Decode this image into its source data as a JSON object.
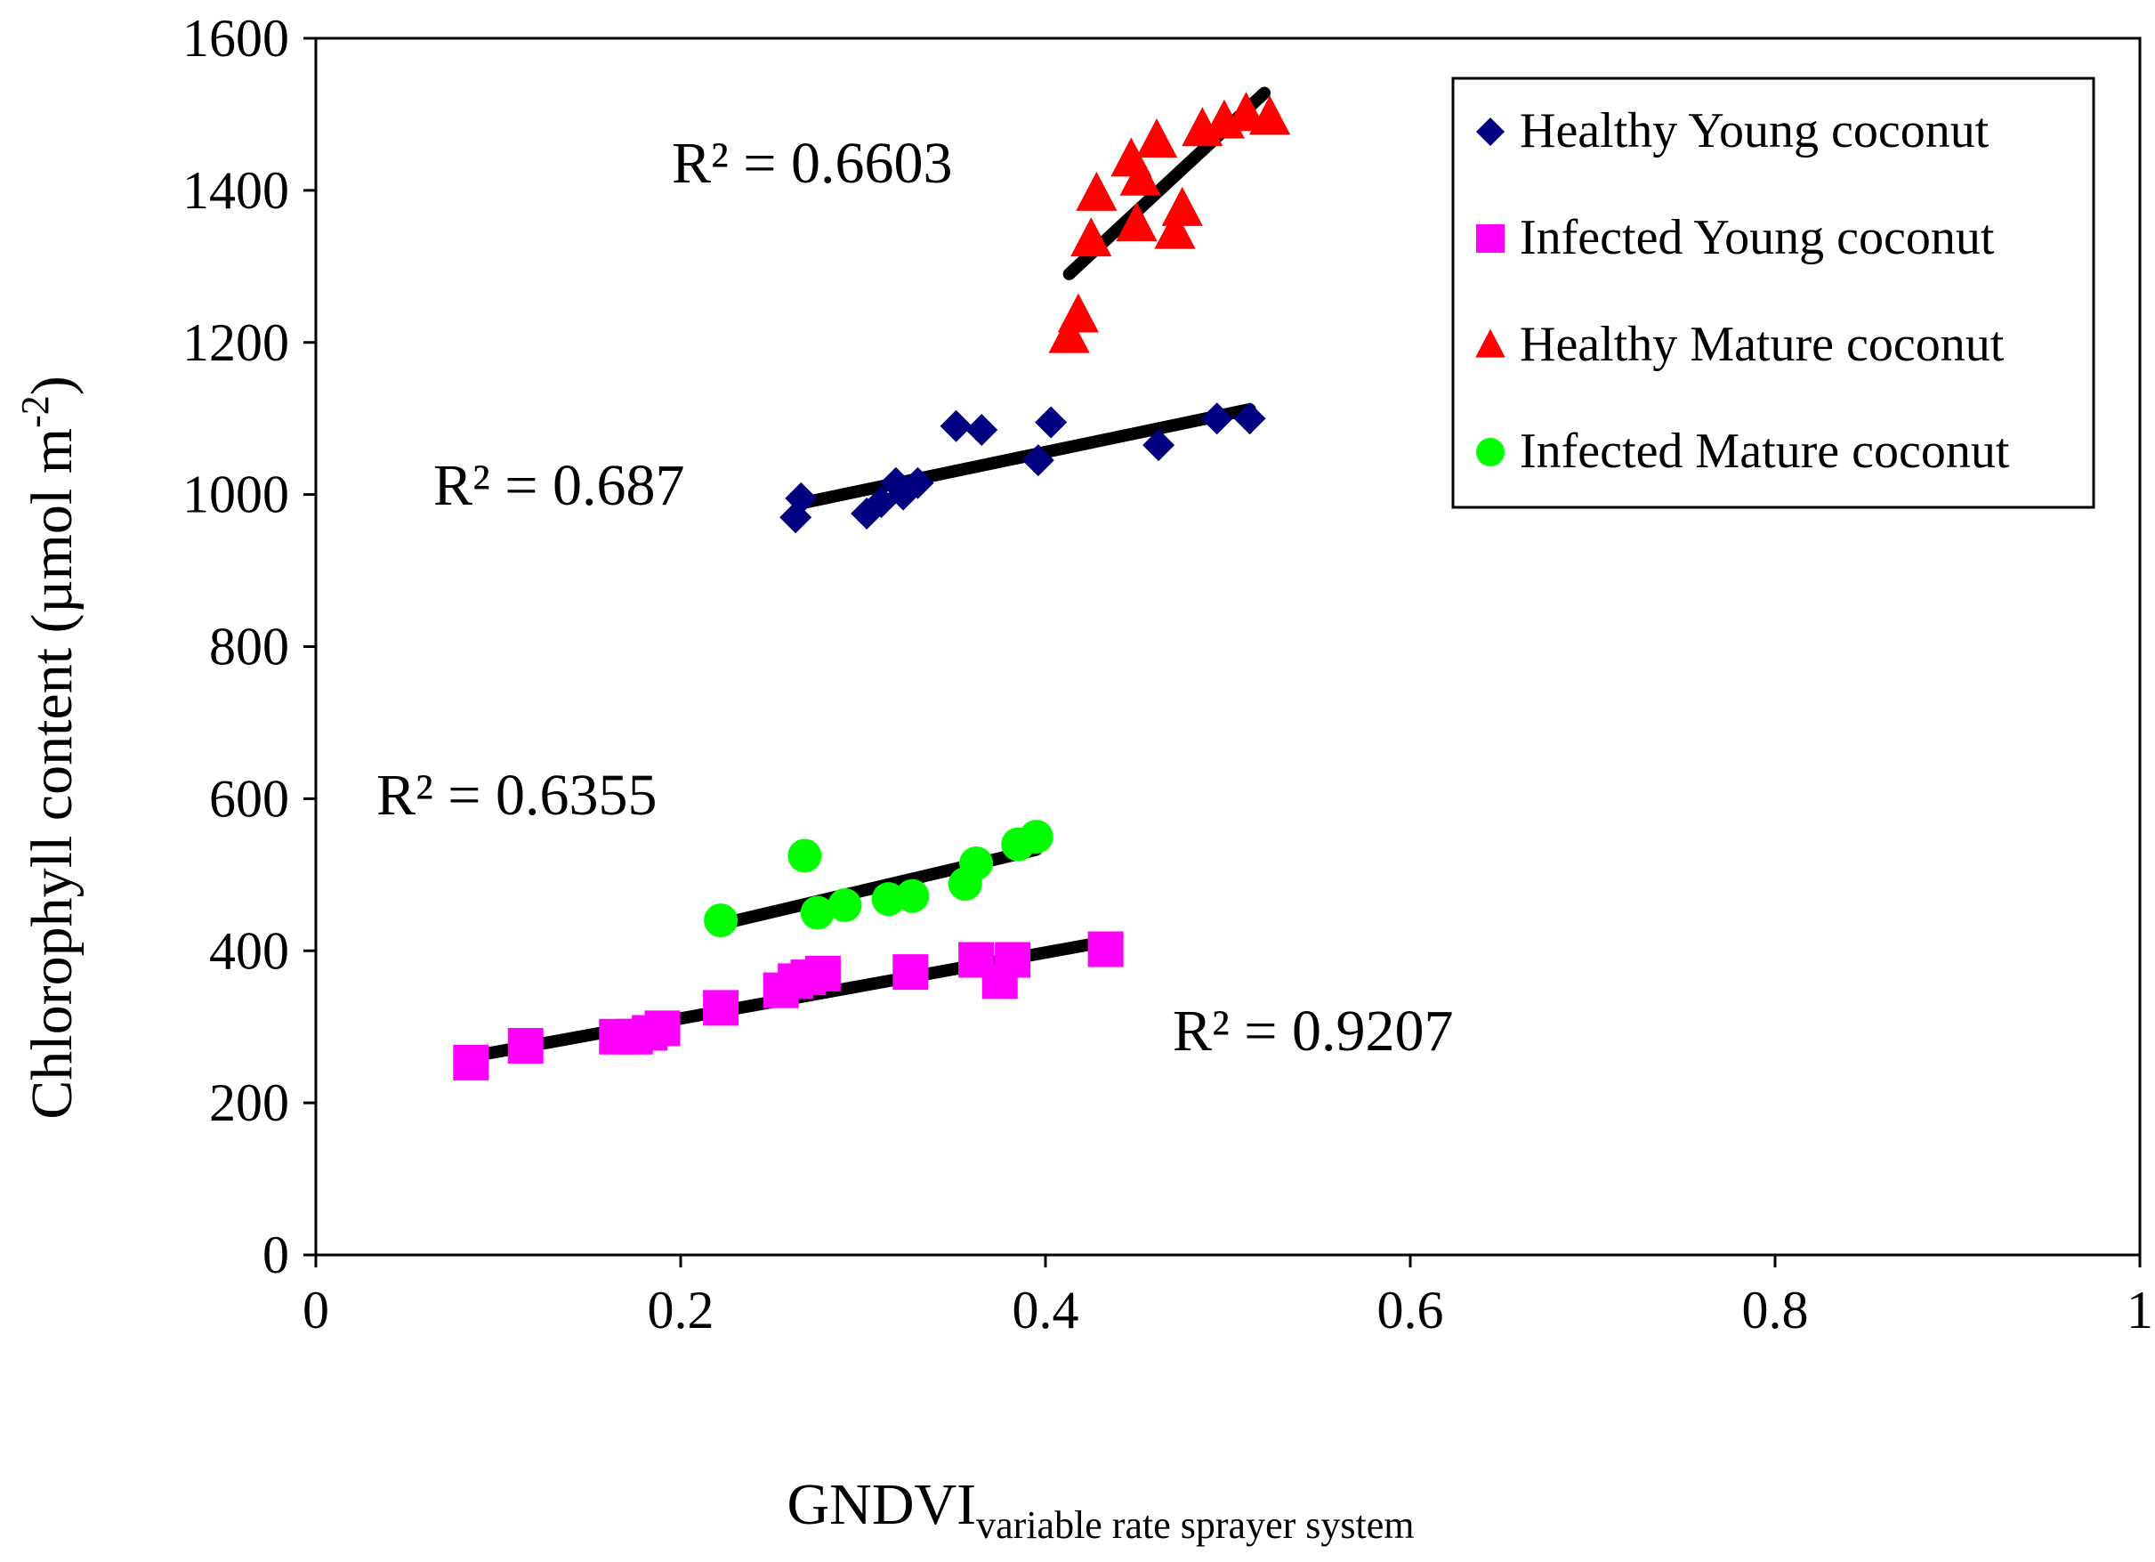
{
  "chart_data": {
    "type": "scatter",
    "title": "",
    "xlabel": "GNDVI",
    "xlabel_subscript": "variable rate sprayer system",
    "ylabel": "Chlorophyll content (µmol m",
    "ylabel_superscript": "-2",
    "ylabel_close": ")",
    "xlim": [
      0,
      1
    ],
    "ylim": [
      0,
      1600
    ],
    "xticks": [
      0,
      0.2,
      0.4,
      0.6,
      0.8,
      1
    ],
    "xtick_labels": [
      "0",
      "0.2",
      "0.4",
      "0.6",
      "0.8",
      "1"
    ],
    "yticks": [
      0,
      200,
      400,
      600,
      800,
      1000,
      1200,
      1400,
      1600
    ],
    "ytick_labels": [
      "0",
      "200",
      "400",
      "600",
      "800",
      "1000",
      "1200",
      "1400",
      "1600"
    ],
    "legend_position": "top-right",
    "series": [
      {
        "name": "Healthy Young coconut",
        "marker": "diamond",
        "color": "#000080",
        "points": [
          [
            0.263,
            970
          ],
          [
            0.266,
            995
          ],
          [
            0.302,
            975
          ],
          [
            0.31,
            990
          ],
          [
            0.318,
            1015
          ],
          [
            0.322,
            1000
          ],
          [
            0.33,
            1015
          ],
          [
            0.351,
            1090
          ],
          [
            0.365,
            1085
          ],
          [
            0.396,
            1045
          ],
          [
            0.403,
            1095
          ],
          [
            0.462,
            1065
          ],
          [
            0.494,
            1100
          ],
          [
            0.512,
            1100
          ]
        ],
        "trendline": {
          "x": [
            0.265,
            0.512
          ],
          "y": [
            988,
            1112
          ]
        },
        "r2_label": "R² = 0.687"
      },
      {
        "name": "Infected Young coconut",
        "marker": "square",
        "color": "#FF00FF",
        "points": [
          [
            0.085,
            253
          ],
          [
            0.115,
            275
          ],
          [
            0.165,
            287
          ],
          [
            0.175,
            287
          ],
          [
            0.183,
            292
          ],
          [
            0.19,
            298
          ],
          [
            0.222,
            325
          ],
          [
            0.255,
            348
          ],
          [
            0.263,
            360
          ],
          [
            0.27,
            365
          ],
          [
            0.278,
            370
          ],
          [
            0.326,
            372
          ],
          [
            0.362,
            388
          ],
          [
            0.375,
            360
          ],
          [
            0.382,
            388
          ],
          [
            0.433,
            402
          ]
        ],
        "trendline": {
          "x": [
            0.085,
            0.433
          ],
          "y": [
            261,
            412
          ]
        },
        "r2_label": "R² = 0.9207"
      },
      {
        "name": "Healthy Mature coconut",
        "marker": "triangle",
        "color": "#FF0000",
        "points": [
          [
            0.413,
            1208
          ],
          [
            0.418,
            1235
          ],
          [
            0.425,
            1335
          ],
          [
            0.428,
            1395
          ],
          [
            0.447,
            1440
          ],
          [
            0.45,
            1355
          ],
          [
            0.452,
            1415
          ],
          [
            0.461,
            1465
          ],
          [
            0.471,
            1345
          ],
          [
            0.475,
            1375
          ],
          [
            0.486,
            1480
          ],
          [
            0.498,
            1490
          ],
          [
            0.51,
            1500
          ],
          [
            0.523,
            1495
          ]
        ],
        "trendline": {
          "x": [
            0.413,
            0.52
          ],
          "y": [
            1290,
            1528
          ]
        },
        "r2_label": "R² = 0.6603"
      },
      {
        "name": "Infected Mature coconut",
        "marker": "circle",
        "color": "#00FF00",
        "points": [
          [
            0.222,
            440
          ],
          [
            0.268,
            525
          ],
          [
            0.275,
            450
          ],
          [
            0.29,
            460
          ],
          [
            0.314,
            468
          ],
          [
            0.327,
            472
          ],
          [
            0.356,
            488
          ],
          [
            0.362,
            515
          ],
          [
            0.385,
            540
          ],
          [
            0.395,
            550
          ]
        ],
        "trendline": {
          "x": [
            0.222,
            0.395
          ],
          "y": [
            435,
            533
          ]
        },
        "r2_label": "R² = 0.6355"
      }
    ]
  }
}
